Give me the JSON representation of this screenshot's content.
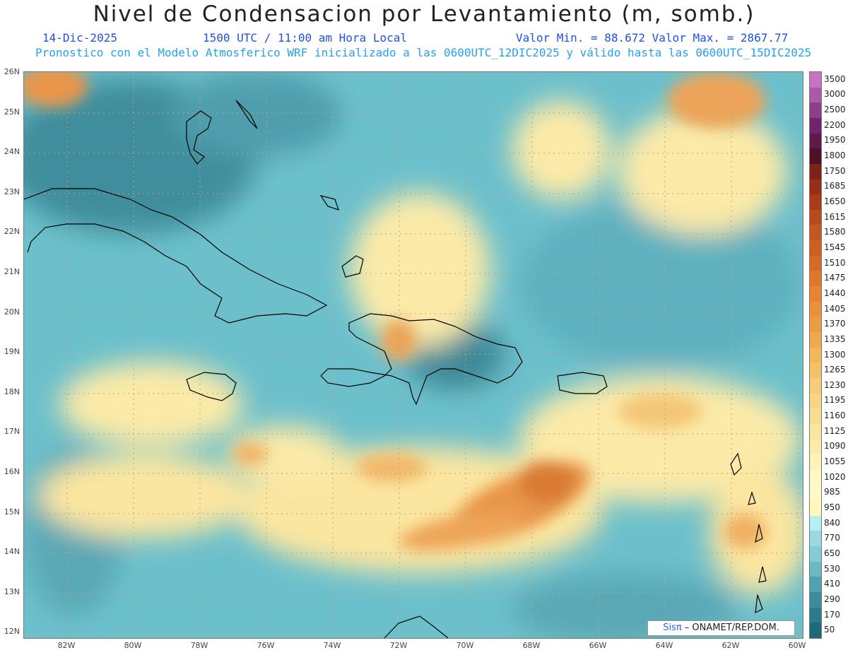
{
  "header": {
    "title": "Nivel de Condensacion por Levantamiento (m, somb.)",
    "date": "14-Dic-2025",
    "time": "1500 UTC / 11:00 am Hora Local",
    "minmax": "Valor Min. = 88.672  Valor Max. = 2867.77",
    "forecast": "Pronostico con el Modelo Atmosferico WRF inicializado a las 0600UTC_12DIC2025 y válido hasta las  0600UTC_15DIC2025"
  },
  "map": {
    "lat_ticks": [
      "26N",
      "25N",
      "24N",
      "23N",
      "22N",
      "21N",
      "20N",
      "19N",
      "18N",
      "17N",
      "16N",
      "15N",
      "14N",
      "13N",
      "12N"
    ],
    "lon_ticks": [
      "82W",
      "80W",
      "78W",
      "76W",
      "74W",
      "72W",
      "70W",
      "68W",
      "66W",
      "64W",
      "62W",
      "60W"
    ],
    "extent": {
      "lon_min": -83.2,
      "lon_max": -59.9,
      "lat_min": 11.9,
      "lat_max": 26.05
    },
    "base_color": "#6cc0cc",
    "coastline_color": "#000000",
    "grid_color": "#b7a77c"
  },
  "colorbar": {
    "labels": [
      "3500",
      "3000",
      "2500",
      "2200",
      "1950",
      "1800",
      "1750",
      "1685",
      "1650",
      "1615",
      "1580",
      "1545",
      "1510",
      "1475",
      "1440",
      "1405",
      "1370",
      "1335",
      "1300",
      "1265",
      "1230",
      "1195",
      "1160",
      "1125",
      "1090",
      "1055",
      "1020",
      "985",
      "950",
      "840",
      "770",
      "650",
      "530",
      "410",
      "290",
      "170",
      "50"
    ],
    "colors": [
      "#c772c4",
      "#ae58aa",
      "#8e3f8c",
      "#73226e",
      "#5e1a4a",
      "#4f1028",
      "#7a2419",
      "#992d16",
      "#ab3a16",
      "#b84b1d",
      "#c45624",
      "#cd5f22",
      "#d76a26",
      "#df762c",
      "#e48434",
      "#e8913c",
      "#ec9c44",
      "#efa94e",
      "#f2b65b",
      "#f4c068",
      "#f6cc78",
      "#f8d585",
      "#f9de92",
      "#fae6a0",
      "#fbecab",
      "#fdf2b7",
      "#fff7c4",
      "#fff8c7",
      "#fff7bb",
      "#b6eef4",
      "#9ad8e2",
      "#86ccd7",
      "#6bb8c6",
      "#50a2b3",
      "#3d8c9e",
      "#2c7b8c",
      "#1f6a7a"
    ]
  },
  "credit": {
    "sis": "Sisπ",
    "text": " – ONAMET/REP.DOM."
  }
}
